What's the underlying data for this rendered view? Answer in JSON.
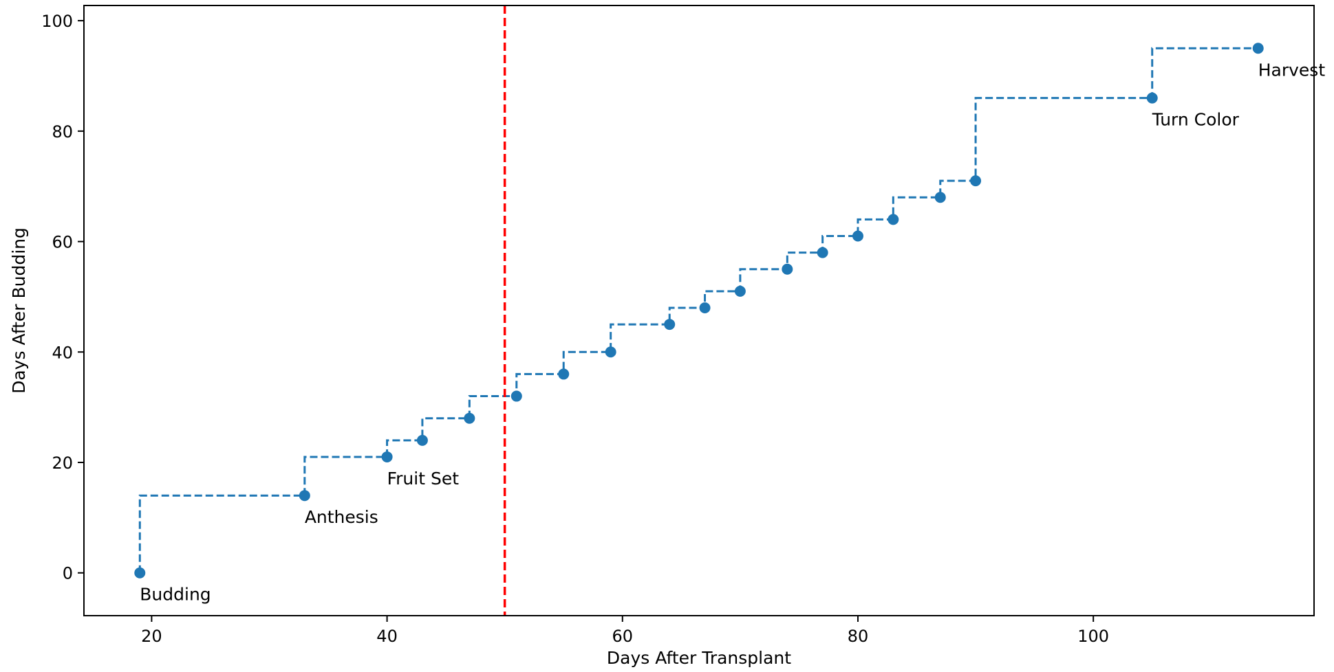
{
  "chart_data": {
    "type": "line",
    "title": "",
    "xlabel": "Days After Transplant",
    "ylabel": "Days After Budding",
    "xlim": [
      14.25,
      118.75
    ],
    "ylim": [
      -7.75,
      102.75
    ],
    "xticks": [
      20,
      40,
      60,
      80,
      100
    ],
    "yticks": [
      0,
      20,
      40,
      60,
      80,
      100
    ],
    "grid": false,
    "step": true,
    "series": [
      {
        "x": [
          19,
          33,
          40,
          43,
          47,
          51,
          55,
          59,
          64,
          67,
          70,
          74,
          77,
          80,
          83,
          87,
          90,
          105,
          114
        ],
        "y": [
          0,
          14,
          21,
          24,
          28,
          32,
          36,
          40,
          45,
          48,
          51,
          55,
          58,
          61,
          64,
          68,
          71,
          86,
          95
        ],
        "color": "#1f77b4",
        "linestyle": "dashed",
        "marker": "circle"
      }
    ],
    "vline": {
      "x": 50,
      "color": "#ff0000",
      "linestyle": "dashed"
    },
    "annotations": [
      {
        "text": "Budding",
        "x": 19,
        "y": 0
      },
      {
        "text": "Anthesis",
        "x": 33,
        "y": 14
      },
      {
        "text": "Fruit Set",
        "x": 40,
        "y": 21
      },
      {
        "text": "Turn Color",
        "x": 105,
        "y": 86
      },
      {
        "text": "Harvest",
        "x": 114,
        "y": 95
      }
    ]
  }
}
